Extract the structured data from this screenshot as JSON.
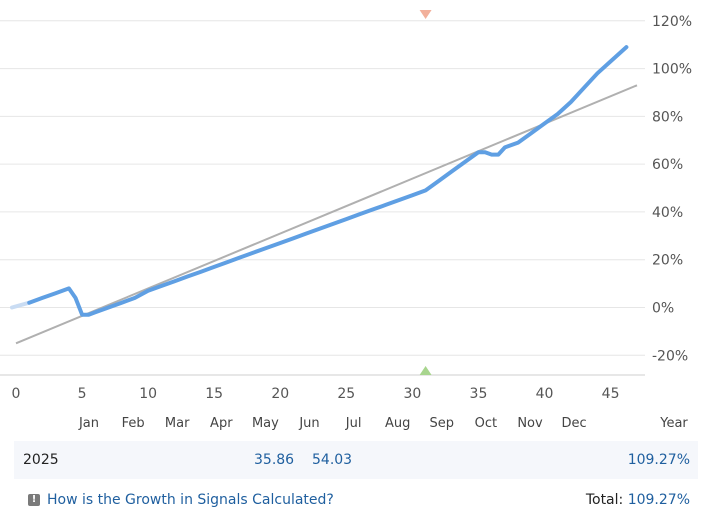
{
  "chart_data": {
    "type": "line",
    "x_ticks": [
      0,
      5,
      10,
      15,
      20,
      25,
      30,
      35,
      40,
      45
    ],
    "xlim": [
      0,
      47
    ],
    "y_ticks": [
      "120%",
      "100%",
      "80%",
      "60%",
      "40%",
      "20%",
      "0%",
      "-20%"
    ],
    "ylim": [
      -27,
      122
    ],
    "y_tick_values": [
      120,
      100,
      80,
      60,
      40,
      20,
      0,
      -20
    ],
    "series": [
      {
        "color": "#5f9fe3",
        "x": [
          0,
          1,
          2,
          3,
          4,
          4.5,
          5,
          5.5,
          6,
          7,
          8,
          9,
          10,
          11,
          12,
          13,
          14,
          15,
          16,
          17,
          18,
          19,
          20,
          21,
          22,
          23,
          24,
          25,
          26,
          27,
          28,
          29,
          30,
          31,
          32,
          33,
          34,
          35,
          35.5,
          36,
          36.5,
          37,
          38,
          39,
          40,
          41,
          42,
          43,
          44,
          45,
          46.2
        ],
        "y": [
          0,
          2,
          4,
          6,
          8,
          4,
          -3,
          -3,
          -2,
          0,
          2,
          4,
          7,
          9,
          11,
          13,
          15,
          17,
          19,
          21,
          23,
          25,
          27,
          29,
          31,
          33,
          35,
          37,
          39,
          41,
          43,
          45,
          47,
          49,
          53,
          57,
          61,
          65,
          65,
          64,
          64,
          67,
          69,
          73,
          77,
          81,
          86,
          92,
          98,
          103,
          109
        ]
      }
    ],
    "trend": {
      "color": "#b0b0b0",
      "x": [
        0,
        47
      ],
      "y": [
        -15,
        93
      ]
    },
    "markers": [
      {
        "type": "down",
        "x": 31,
        "color": "#f2b09b"
      },
      {
        "type": "up",
        "x": 31,
        "color": "#a8d58e"
      }
    ],
    "months": [
      "Jan",
      "Feb",
      "Mar",
      "Apr",
      "May",
      "Jun",
      "Jul",
      "Aug",
      "Sep",
      "Oct",
      "Nov",
      "Dec"
    ],
    "year_label": "Year"
  },
  "table": {
    "year": "2025",
    "values": [
      {
        "month": "May",
        "value": "35.86"
      },
      {
        "month": "Jun",
        "value": "54.03"
      }
    ],
    "year_total": "109.27%"
  },
  "footer": {
    "info_icon": "info-icon",
    "link_text": "How is the Growth in Signals Calculated?",
    "total_label": "Total:",
    "total_value": "109.27%"
  }
}
